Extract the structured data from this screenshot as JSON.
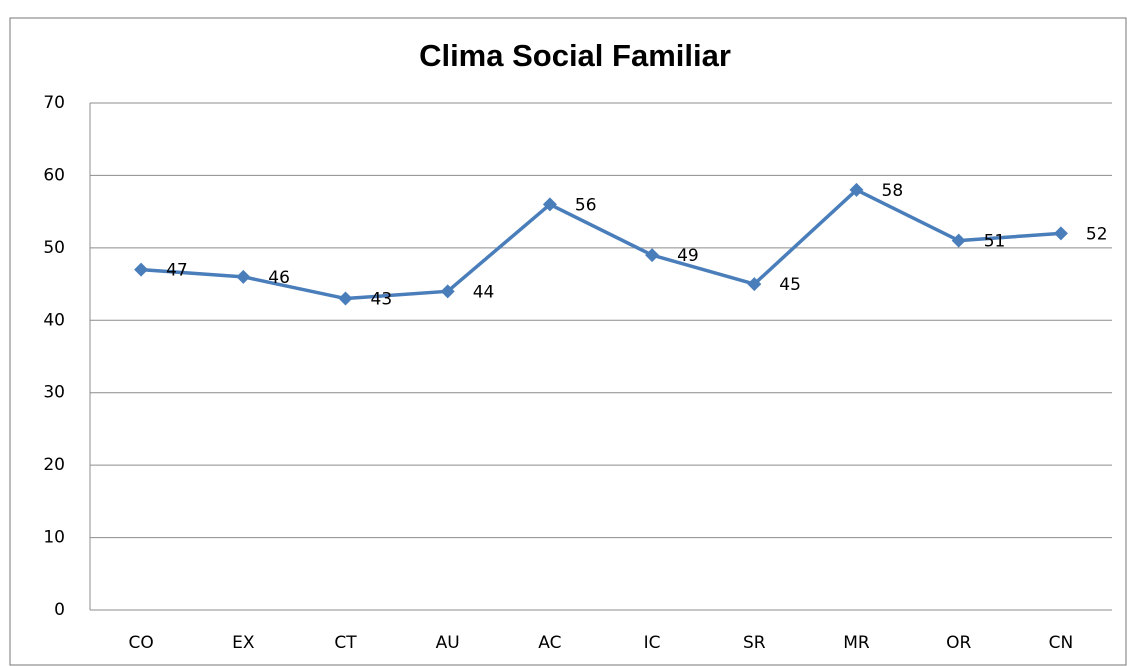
{
  "chart_data": {
    "type": "line",
    "title": "Clima Social Familiar",
    "categories": [
      "CO",
      "EX",
      "CT",
      "AU",
      "AC",
      "IC",
      "SR",
      "MR",
      "OR",
      "CN"
    ],
    "values": [
      47,
      46,
      43,
      44,
      56,
      49,
      45,
      58,
      51,
      52
    ],
    "color": "#4a7ebb",
    "ylim": [
      0,
      70
    ],
    "yticks": [
      0,
      10,
      20,
      30,
      40,
      50,
      60,
      70
    ],
    "grid": true
  }
}
